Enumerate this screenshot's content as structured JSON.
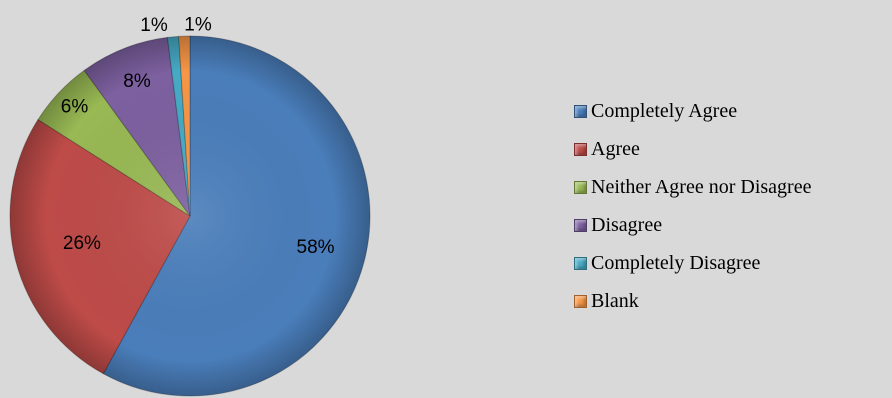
{
  "chart_data": {
    "type": "pie",
    "title": "",
    "categories": [
      "Completely Agree",
      "Agree",
      "Neither Agree nor Disagree",
      "Disagree",
      "Completely Disagree",
      "Blank"
    ],
    "values": [
      58,
      26,
      6,
      8,
      1,
      1
    ],
    "labels": [
      "58%",
      "26%",
      "6%",
      "8%",
      "1%",
      "1%"
    ],
    "colors": [
      "#4a7ebb",
      "#be4b48",
      "#98b954",
      "#7d60a0",
      "#46aac5",
      "#f79646"
    ],
    "start_angle": "12 o'clock",
    "direction": "clockwise",
    "legend_position": "right"
  },
  "legend": {
    "items": [
      {
        "label": "Completely Agree",
        "color": "#4a7ebb"
      },
      {
        "label": "Agree",
        "color": "#be4b48"
      },
      {
        "label": "Neither Agree nor Disagree",
        "color": "#98b954"
      },
      {
        "label": "Disagree",
        "color": "#7d60a0"
      },
      {
        "label": "Completely Disagree",
        "color": "#46aac5"
      },
      {
        "label": "Blank",
        "color": "#f79646"
      }
    ]
  }
}
